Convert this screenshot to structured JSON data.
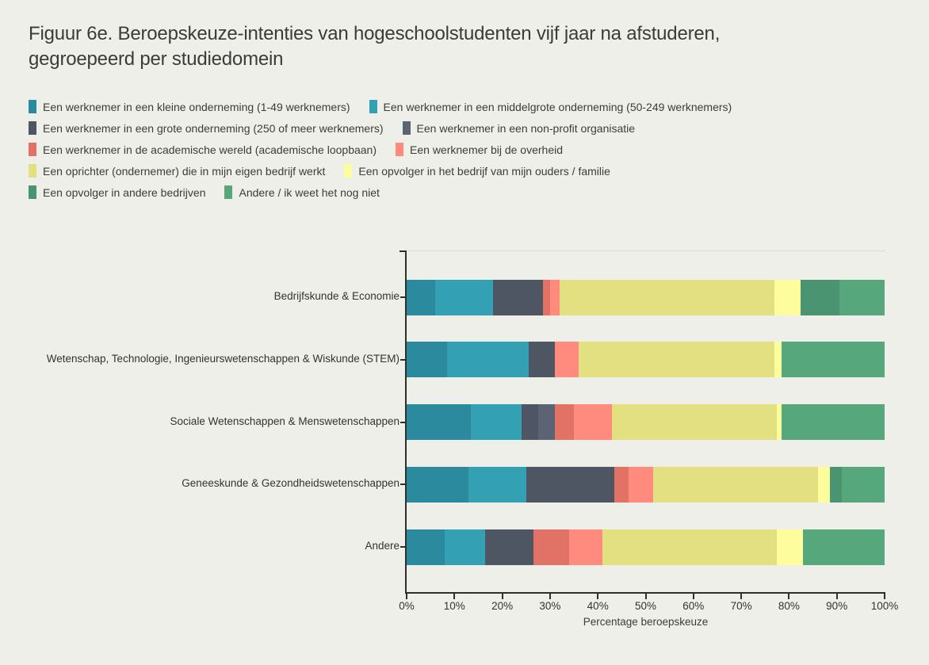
{
  "title": {
    "line1": "Figuur 6e. Beroepskeuze-intenties van hogeschoolstudenten vijf jaar na afstuderen,",
    "line2": "gegroepeerd per studiedomein"
  },
  "colors": {
    "background": "#EEEFE8",
    "axis": "#2F2F2D",
    "text": "#3B3D3B"
  },
  "chart_data": {
    "type": "bar",
    "orientation": "horizontal-stacked",
    "title": "Figuur 6e. Beroepskeuze-intenties van hogeschoolstudenten vijf jaar na afstuderen, gegroepeerd per studiedomein",
    "xlabel": "Percentage beroepskeuze",
    "ylabel": "",
    "xlim": [
      0,
      100
    ],
    "x_ticks": [
      "0%",
      "10%",
      "20%",
      "30%",
      "40%",
      "50%",
      "60%",
      "70%",
      "80%",
      "90%",
      "100%"
    ],
    "legend_position": "top-left",
    "grid": false,
    "categories": [
      "Bedrijfskunde & Economie",
      "Wetenschap, Technologie, Ingenieurswetenschappen & Wiskunde (STEM)",
      "Sociale Wetenschappen & Menswetenschappen",
      "Geneeskunde & Gezondheidswetenschappen",
      "Andere"
    ],
    "series": [
      {
        "name": "Een werknemer in een kleine onderneming (1-49 werknemers)",
        "color": "#2B8A9D",
        "values": [
          6,
          8.5,
          13.5,
          13,
          8
        ]
      },
      {
        "name": "Een werknemer in een middelgrote onderneming (50-249 werknemers)",
        "color": "#33A0B3",
        "values": [
          12,
          17,
          10.5,
          12,
          8.5
        ]
      },
      {
        "name": "Een werknemer in een grote onderneming (250 of meer werknemers)",
        "color": "#4E5663",
        "values": [
          10.5,
          5.5,
          3.5,
          18.5,
          10
        ]
      },
      {
        "name": "Een werknemer in een non-profit organisatie",
        "color": "#5C6473",
        "values": [
          0,
          0,
          3.5,
          0,
          0
        ]
      },
      {
        "name": "Een werknemer in de academische wereld (academische loopbaan)",
        "color": "#E27266",
        "values": [
          1.5,
          0,
          4,
          3,
          7.5
        ]
      },
      {
        "name": "Een werknemer bij de overheid",
        "color": "#FF8A7E",
        "values": [
          2,
          5,
          8,
          5,
          7
        ]
      },
      {
        "name": "Een oprichter (ondernemer) die in mijn eigen bedrijf werkt",
        "color": "#E3E081",
        "values": [
          45,
          41,
          34.5,
          34.5,
          36.5
        ]
      },
      {
        "name": "Een opvolger in het bedrijf van mijn ouders / familie",
        "color": "#FDFD9E",
        "values": [
          5.5,
          1.5,
          1,
          2.5,
          5.5
        ]
      },
      {
        "name": "Een opvolger in andere bedrijven",
        "color": "#4B9471",
        "values": [
          8,
          0,
          0,
          2.5,
          0
        ]
      },
      {
        "name": "Andere / ik weet het nog niet",
        "color": "#57A77D",
        "values": [
          9.5,
          21.5,
          21.5,
          9,
          17
        ]
      }
    ]
  }
}
